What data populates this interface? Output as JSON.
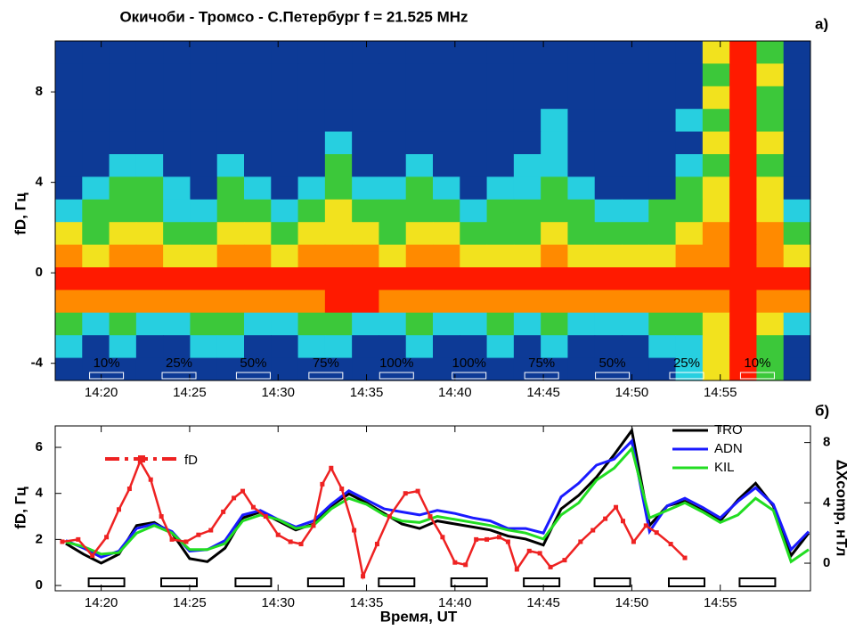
{
  "chart_data": [
    {
      "type": "spectrogram",
      "title": "Окичоби - Тромсо - С.Петербург f = 21.525 MHz",
      "panel_label": "а)",
      "ylabel": "fD, Гц",
      "xlim": [
        857.4,
        900.1
      ],
      "ylim": [
        -4.76,
        10.25
      ],
      "xticks": [
        {
          "value": 860,
          "label": "14:20"
        },
        {
          "value": 865,
          "label": "14:25"
        },
        {
          "value": 870,
          "label": "14:30"
        },
        {
          "value": 875,
          "label": "14:35"
        },
        {
          "value": 880,
          "label": "14:40"
        },
        {
          "value": 885,
          "label": "14:45"
        },
        {
          "value": 890,
          "label": "14:50"
        },
        {
          "value": 895,
          "label": "14:55"
        }
      ],
      "yticks": [
        -4,
        0,
        4,
        8
      ],
      "colors": [
        "#0d3a96",
        "#27cfe0",
        "#3cc83a",
        "#f2e21e",
        "#ff8a00",
        "#ff1a00"
      ],
      "z": [
        [
          0,
          0,
          0,
          0,
          0,
          0,
          0,
          0,
          0,
          0,
          0,
          0,
          0,
          0,
          0,
          0,
          0,
          0,
          0,
          0,
          0,
          0,
          0,
          0,
          3,
          5,
          2,
          0
        ],
        [
          0,
          0,
          0,
          0,
          0,
          0,
          0,
          0,
          0,
          0,
          0,
          0,
          0,
          0,
          0,
          0,
          0,
          0,
          0,
          0,
          0,
          0,
          0,
          0,
          2,
          5,
          3,
          0
        ],
        [
          0,
          0,
          0,
          0,
          0,
          0,
          0,
          0,
          0,
          0,
          0,
          0,
          0,
          0,
          0,
          0,
          0,
          0,
          0,
          0,
          0,
          0,
          0,
          0,
          3,
          5,
          2,
          0
        ],
        [
          0,
          0,
          0,
          0,
          0,
          0,
          0,
          0,
          0,
          0,
          0,
          0,
          0,
          0,
          0,
          0,
          0,
          0,
          1,
          0,
          0,
          0,
          0,
          1,
          2,
          5,
          2,
          0
        ],
        [
          0,
          0,
          0,
          0,
          0,
          0,
          0,
          0,
          0,
          0,
          1,
          0,
          0,
          0,
          0,
          0,
          0,
          0,
          1,
          0,
          0,
          0,
          0,
          0,
          3,
          5,
          3,
          0
        ],
        [
          0,
          0,
          1,
          1,
          0,
          0,
          1,
          0,
          0,
          0,
          2,
          0,
          0,
          1,
          0,
          0,
          0,
          1,
          1,
          0,
          0,
          0,
          0,
          1,
          2,
          5,
          2,
          0
        ],
        [
          0,
          1,
          2,
          2,
          1,
          0,
          2,
          1,
          0,
          1,
          2,
          1,
          1,
          2,
          1,
          0,
          1,
          1,
          2,
          1,
          0,
          0,
          0,
          2,
          3,
          5,
          3,
          0
        ],
        [
          1,
          2,
          2,
          2,
          1,
          1,
          2,
          2,
          1,
          2,
          3,
          2,
          2,
          2,
          2,
          1,
          2,
          2,
          2,
          2,
          1,
          1,
          2,
          2,
          3,
          5,
          3,
          1
        ],
        [
          3,
          2,
          3,
          3,
          2,
          2,
          3,
          3,
          2,
          3,
          3,
          3,
          2,
          3,
          3,
          2,
          2,
          2,
          3,
          2,
          2,
          2,
          2,
          3,
          4,
          5,
          4,
          2
        ],
        [
          4,
          3,
          4,
          4,
          3,
          3,
          4,
          4,
          3,
          4,
          4,
          4,
          3,
          4,
          4,
          3,
          3,
          3,
          4,
          3,
          3,
          3,
          3,
          4,
          4,
          5,
          4,
          3
        ],
        [
          5,
          5,
          5,
          5,
          5,
          5,
          5,
          5,
          5,
          5,
          5,
          5,
          5,
          5,
          5,
          5,
          5,
          5,
          5,
          5,
          5,
          5,
          5,
          5,
          5,
          5,
          5,
          5
        ],
        [
          4,
          4,
          4,
          4,
          4,
          4,
          4,
          4,
          4,
          4,
          5,
          5,
          4,
          4,
          4,
          4,
          4,
          4,
          4,
          4,
          4,
          4,
          4,
          4,
          4,
          5,
          4,
          4
        ],
        [
          2,
          1,
          2,
          1,
          1,
          2,
          2,
          1,
          1,
          2,
          2,
          1,
          1,
          2,
          1,
          1,
          2,
          1,
          2,
          1,
          1,
          1,
          2,
          2,
          3,
          5,
          3,
          1
        ],
        [
          1,
          0,
          1,
          0,
          0,
          1,
          1,
          0,
          0,
          1,
          1,
          0,
          0,
          1,
          0,
          0,
          1,
          0,
          1,
          0,
          0,
          0,
          1,
          1,
          3,
          5,
          2,
          0
        ],
        [
          0,
          0,
          0,
          0,
          0,
          0,
          0,
          0,
          0,
          0,
          0,
          0,
          0,
          0,
          0,
          0,
          0,
          0,
          0,
          0,
          0,
          0,
          0,
          1,
          3,
          5,
          2,
          0
        ]
      ],
      "power_labels": [
        "10%",
        "25%",
        "50%",
        "75%",
        "100%",
        "100%",
        "75%",
        "50%",
        "25%",
        "10%"
      ],
      "power_x": [
        860.3,
        864.4,
        868.6,
        872.7,
        876.7,
        880.8,
        884.9,
        888.9,
        893.1,
        897.1
      ]
    },
    {
      "type": "line",
      "panel_label": "б)",
      "xlabel": "Время, UT",
      "ylabel": "fD, Гц",
      "y2label": "ΔXcomp, нТл",
      "xlim": [
        857.4,
        900.1
      ],
      "ylim": [
        -0.23,
        6.93
      ],
      "y2lim": [
        -1.83,
        9.1
      ],
      "xticks": [
        {
          "value": 860,
          "label": "14:20"
        },
        {
          "value": 865,
          "label": "14:25"
        },
        {
          "value": 870,
          "label": "14:30"
        },
        {
          "value": 875,
          "label": "14:35"
        },
        {
          "value": 880,
          "label": "14:40"
        },
        {
          "value": 885,
          "label": "14:45"
        },
        {
          "value": 890,
          "label": "14:50"
        },
        {
          "value": 895,
          "label": "14:55"
        }
      ],
      "yticks": [
        0,
        2,
        4,
        6
      ],
      "y2ticks": [
        0,
        4,
        8
      ],
      "x": [
        858,
        859,
        860,
        861,
        862,
        863,
        864,
        865,
        866,
        867,
        868,
        869,
        870,
        871,
        872,
        873,
        874,
        875,
        876,
        877,
        878,
        879,
        880,
        881,
        882,
        883,
        884,
        885,
        886,
        887,
        888,
        889,
        890,
        891,
        892,
        893,
        894,
        895,
        896,
        897,
        898,
        899,
        900
      ],
      "series": [
        {
          "name": "TRO",
          "color": "#000000",
          "axis": "y2",
          "values": [
            1.3,
            0.6,
            0.0,
            0.6,
            2.5,
            2.7,
            2.0,
            0.3,
            0.1,
            1.0,
            3.0,
            3.4,
            2.8,
            2.2,
            2.6,
            3.8,
            4.6,
            4.0,
            3.3,
            2.6,
            2.3,
            2.8,
            2.6,
            2.4,
            2.2,
            1.8,
            1.6,
            1.2,
            3.6,
            4.5,
            5.7,
            7.2,
            8.8,
            2.5,
            3.8,
            4.1,
            3.5,
            2.8,
            4.2,
            5.3,
            3.8,
            0.5,
            2.0
          ]
        },
        {
          "name": "ADN",
          "color": "#1a1aff",
          "axis": "y2",
          "values": [
            1.5,
            1.0,
            0.4,
            0.8,
            2.3,
            2.6,
            2.1,
            0.8,
            0.9,
            1.5,
            3.2,
            3.5,
            2.9,
            2.4,
            2.8,
            3.9,
            4.8,
            4.2,
            3.6,
            3.4,
            3.2,
            3.5,
            3.3,
            3.0,
            2.8,
            2.3,
            2.3,
            2.0,
            4.4,
            5.3,
            6.5,
            6.9,
            8.1,
            2.1,
            3.8,
            4.3,
            3.7,
            3.0,
            4.1,
            5.0,
            3.9,
            0.9,
            2.1
          ]
        },
        {
          "name": "KIL",
          "color": "#22dd22",
          "axis": "y2",
          "values": [
            1.4,
            1.1,
            0.6,
            0.7,
            2.0,
            2.5,
            2.0,
            0.9,
            0.9,
            1.3,
            2.8,
            3.2,
            2.9,
            2.3,
            2.5,
            3.6,
            4.3,
            3.9,
            3.2,
            2.8,
            2.7,
            3.1,
            2.9,
            2.7,
            2.5,
            2.2,
            2.0,
            1.6,
            3.2,
            4.0,
            5.5,
            6.3,
            7.6,
            3.0,
            3.5,
            4.0,
            3.4,
            2.7,
            3.2,
            4.3,
            3.5,
            0.1,
            0.9
          ]
        },
        {
          "name": "fD",
          "color": "#ee2222",
          "x": [
            857.8,
            858.7,
            859.5,
            860.3,
            861,
            861.6,
            862.2,
            862.8,
            863.4,
            864,
            864.8,
            865.5,
            866.2,
            866.9,
            867.5,
            868,
            868.6,
            869.3,
            870,
            870.7,
            871.3,
            872,
            872.5,
            873,
            873.6,
            874.3,
            874.8,
            875.6,
            876.3,
            877.2,
            877.9,
            878.6,
            879.3,
            880,
            880.6,
            881.2,
            881.8,
            882.5,
            883,
            883.5,
            884.2,
            884.8,
            885.4,
            886.2,
            887.1,
            887.8,
            888.5,
            889.1,
            889.5,
            890.1,
            890.8,
            891.4,
            892.2,
            893
          ],
          "values": [
            1.9,
            2.0,
            1.3,
            2.1,
            3.3,
            4.2,
            5.4,
            4.6,
            3.0,
            2.0,
            1.9,
            2.2,
            2.4,
            3.2,
            3.8,
            4.1,
            3.4,
            3.0,
            2.2,
            1.9,
            1.8,
            2.6,
            4.4,
            5.1,
            4.2,
            2.4,
            0.4,
            1.8,
            3.0,
            4.0,
            4.1,
            3.0,
            2.1,
            1.0,
            0.9,
            2.0,
            2.0,
            2.1,
            1.9,
            0.7,
            1.5,
            1.4,
            0.8,
            1.1,
            1.9,
            2.4,
            2.9,
            3.4,
            2.8,
            1.9,
            2.6,
            2.3,
            1.8,
            1.2
          ]
        }
      ]
    }
  ]
}
